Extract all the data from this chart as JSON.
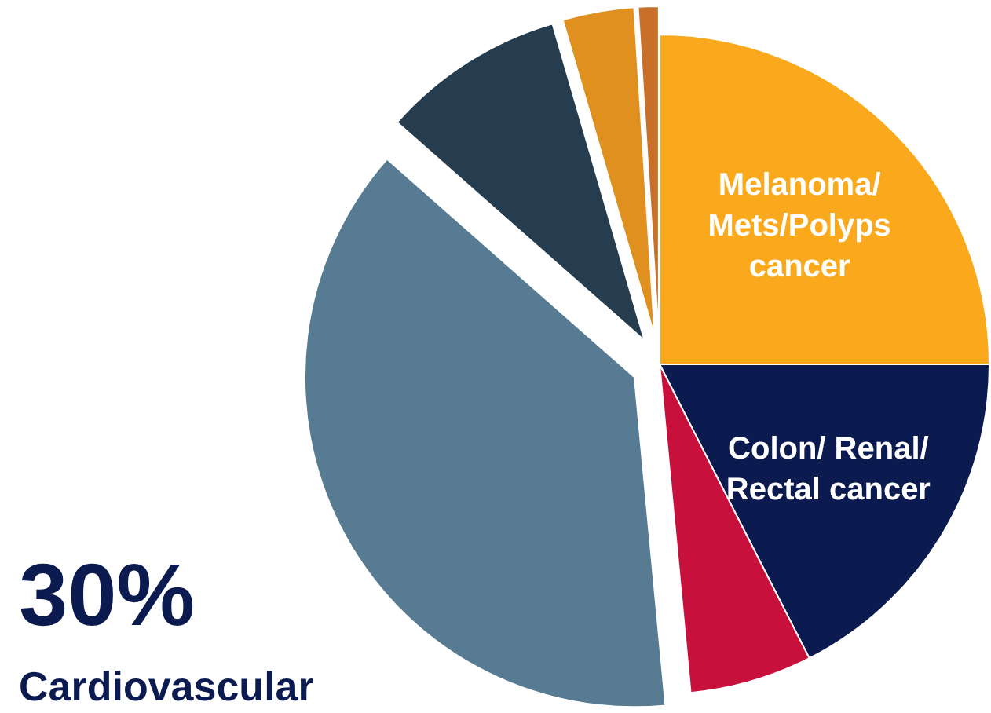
{
  "chart_data": {
    "type": "pie",
    "categories": [
      "Melanoma/ Mets/Polyps cancer",
      "Colon/ Renal/ Rectal cancer",
      null,
      null,
      null,
      null,
      null
    ],
    "values": [
      25,
      17.5,
      6,
      38,
      9,
      3.5,
      1
    ],
    "colors": [
      "#f9a91b",
      "#0b1a4f",
      "#c8103d",
      "#567b93",
      "#253d4f",
      "#e0901e",
      "#c8702a"
    ],
    "annotations": [
      "30%",
      "Cardiovascular"
    ]
  }
}
